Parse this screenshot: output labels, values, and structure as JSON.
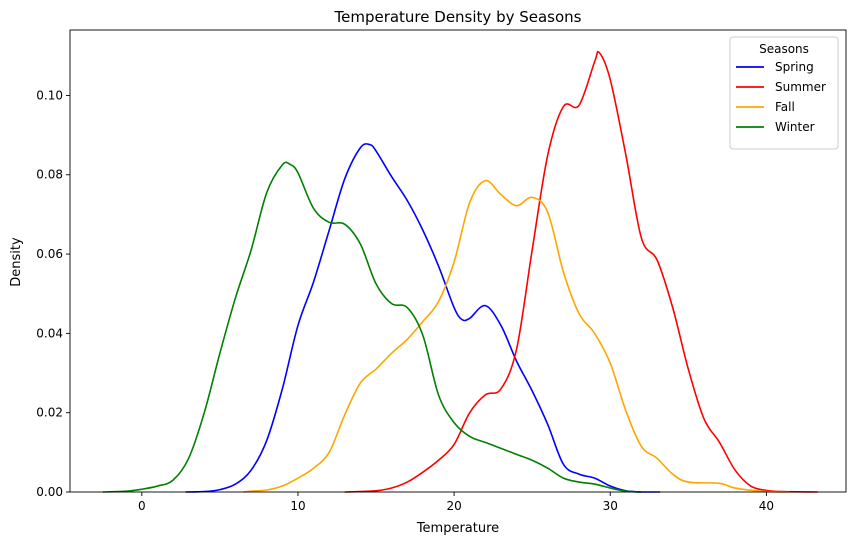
{
  "chart_data": {
    "type": "line",
    "title": "Temperature Density by Seasons",
    "xlabel": "Temperature",
    "ylabel": "Density",
    "xlim": [
      -4.6,
      45.1
    ],
    "ylim": [
      0,
      0.1165
    ],
    "xticks": [
      0,
      10,
      20,
      30,
      40
    ],
    "yticks": [
      0.0,
      0.02,
      0.04,
      0.06,
      0.08,
      0.1
    ],
    "ytick_labels": [
      "0.00",
      "0.02",
      "0.04",
      "0.06",
      "0.08",
      "0.10"
    ],
    "grid": false,
    "legend": {
      "title": "Seasons",
      "placement": "top-right"
    },
    "series": [
      {
        "name": "Spring",
        "color": "#0000ff",
        "points": [
          [
            2.8,
            0
          ],
          [
            4,
            0.0001
          ],
          [
            5,
            0.0006
          ],
          [
            6,
            0.002
          ],
          [
            7,
            0.0055
          ],
          [
            8,
            0.013
          ],
          [
            9,
            0.026
          ],
          [
            10,
            0.042
          ],
          [
            11,
            0.053
          ],
          [
            12,
            0.066
          ],
          [
            13,
            0.079
          ],
          [
            14,
            0.0868
          ],
          [
            14.6,
            0.0876
          ],
          [
            15,
            0.086
          ],
          [
            16,
            0.0795
          ],
          [
            17,
            0.0735
          ],
          [
            18,
            0.066
          ],
          [
            19,
            0.057
          ],
          [
            20,
            0.0465
          ],
          [
            20.5,
            0.0435
          ],
          [
            21,
            0.0438
          ],
          [
            22,
            0.047
          ],
          [
            23,
            0.042
          ],
          [
            24,
            0.033
          ],
          [
            25,
            0.0255
          ],
          [
            26,
            0.017
          ],
          [
            27,
            0.007
          ],
          [
            28,
            0.0045
          ],
          [
            29,
            0.0035
          ],
          [
            30,
            0.0015
          ],
          [
            31,
            0.0003
          ],
          [
            32,
            0
          ],
          [
            33.2,
            0
          ]
        ]
      },
      {
        "name": "Summer",
        "color": "#ff0000",
        "points": [
          [
            13,
            0
          ],
          [
            15,
            0.0003
          ],
          [
            16,
            0.001
          ],
          [
            17,
            0.0025
          ],
          [
            18,
            0.005
          ],
          [
            19,
            0.008
          ],
          [
            20,
            0.012
          ],
          [
            21,
            0.02
          ],
          [
            22,
            0.0245
          ],
          [
            23,
            0.026
          ],
          [
            24,
            0.036
          ],
          [
            25,
            0.061
          ],
          [
            26,
            0.085
          ],
          [
            27,
            0.0972
          ],
          [
            28,
            0.0975
          ],
          [
            29,
            0.1085
          ],
          [
            29.3,
            0.1108
          ],
          [
            30,
            0.104
          ],
          [
            31,
            0.085
          ],
          [
            32,
            0.064
          ],
          [
            33,
            0.0585
          ],
          [
            34,
            0.0465
          ],
          [
            35,
            0.031
          ],
          [
            36,
            0.0185
          ],
          [
            37,
            0.0125
          ],
          [
            38,
            0.0055
          ],
          [
            39,
            0.0015
          ],
          [
            40,
            0.0004
          ],
          [
            41,
            0.0001
          ],
          [
            43.3,
            0
          ]
        ]
      },
      {
        "name": "Fall",
        "color": "#ffa500",
        "points": [
          [
            6.5,
            0
          ],
          [
            7,
            0.0002
          ],
          [
            8,
            0.0005
          ],
          [
            9,
            0.0015
          ],
          [
            10,
            0.0035
          ],
          [
            11,
            0.006
          ],
          [
            12,
            0.01
          ],
          [
            13,
            0.0195
          ],
          [
            14,
            0.0275
          ],
          [
            15,
            0.031
          ],
          [
            16,
            0.035
          ],
          [
            17,
            0.0385
          ],
          [
            18,
            0.043
          ],
          [
            19,
            0.048
          ],
          [
            20,
            0.058
          ],
          [
            21,
            0.073
          ],
          [
            22,
            0.0785
          ],
          [
            23,
            0.075
          ],
          [
            24,
            0.0722
          ],
          [
            25,
            0.0743
          ],
          [
            26,
            0.0705
          ],
          [
            27,
            0.0555
          ],
          [
            28,
            0.045
          ],
          [
            29,
            0.04
          ],
          [
            30,
            0.0325
          ],
          [
            31,
            0.0205
          ],
          [
            32,
            0.0115
          ],
          [
            33,
            0.0085
          ],
          [
            34,
            0.0045
          ],
          [
            35,
            0.0025
          ],
          [
            37,
            0.0022
          ],
          [
            38,
            0.001
          ],
          [
            40,
            0.0001
          ],
          [
            41.5,
            0
          ]
        ]
      },
      {
        "name": "Winter",
        "color": "#008000",
        "points": [
          [
            -2.5,
            0
          ],
          [
            -1,
            0.0002
          ],
          [
            0,
            0.0007
          ],
          [
            1,
            0.0015
          ],
          [
            2,
            0.003
          ],
          [
            3,
            0.0085
          ],
          [
            4,
            0.02
          ],
          [
            5,
            0.035
          ],
          [
            6,
            0.049
          ],
          [
            7,
            0.061
          ],
          [
            8,
            0.0755
          ],
          [
            9,
            0.0825
          ],
          [
            9.5,
            0.0826
          ],
          [
            10,
            0.0805
          ],
          [
            11,
            0.0715
          ],
          [
            12,
            0.068
          ],
          [
            13,
            0.0675
          ],
          [
            14,
            0.0625
          ],
          [
            15,
            0.0525
          ],
          [
            16,
            0.0475
          ],
          [
            17,
            0.0465
          ],
          [
            18,
            0.0395
          ],
          [
            19,
            0.0245
          ],
          [
            20,
            0.0175
          ],
          [
            21,
            0.014
          ],
          [
            22,
            0.0125
          ],
          [
            23,
            0.011
          ],
          [
            24,
            0.0095
          ],
          [
            25,
            0.008
          ],
          [
            26,
            0.006
          ],
          [
            27,
            0.0035
          ],
          [
            28,
            0.0025
          ],
          [
            29,
            0.002
          ],
          [
            30,
            0.001
          ],
          [
            31,
            0.0002
          ],
          [
            32,
            0
          ]
        ]
      }
    ]
  }
}
